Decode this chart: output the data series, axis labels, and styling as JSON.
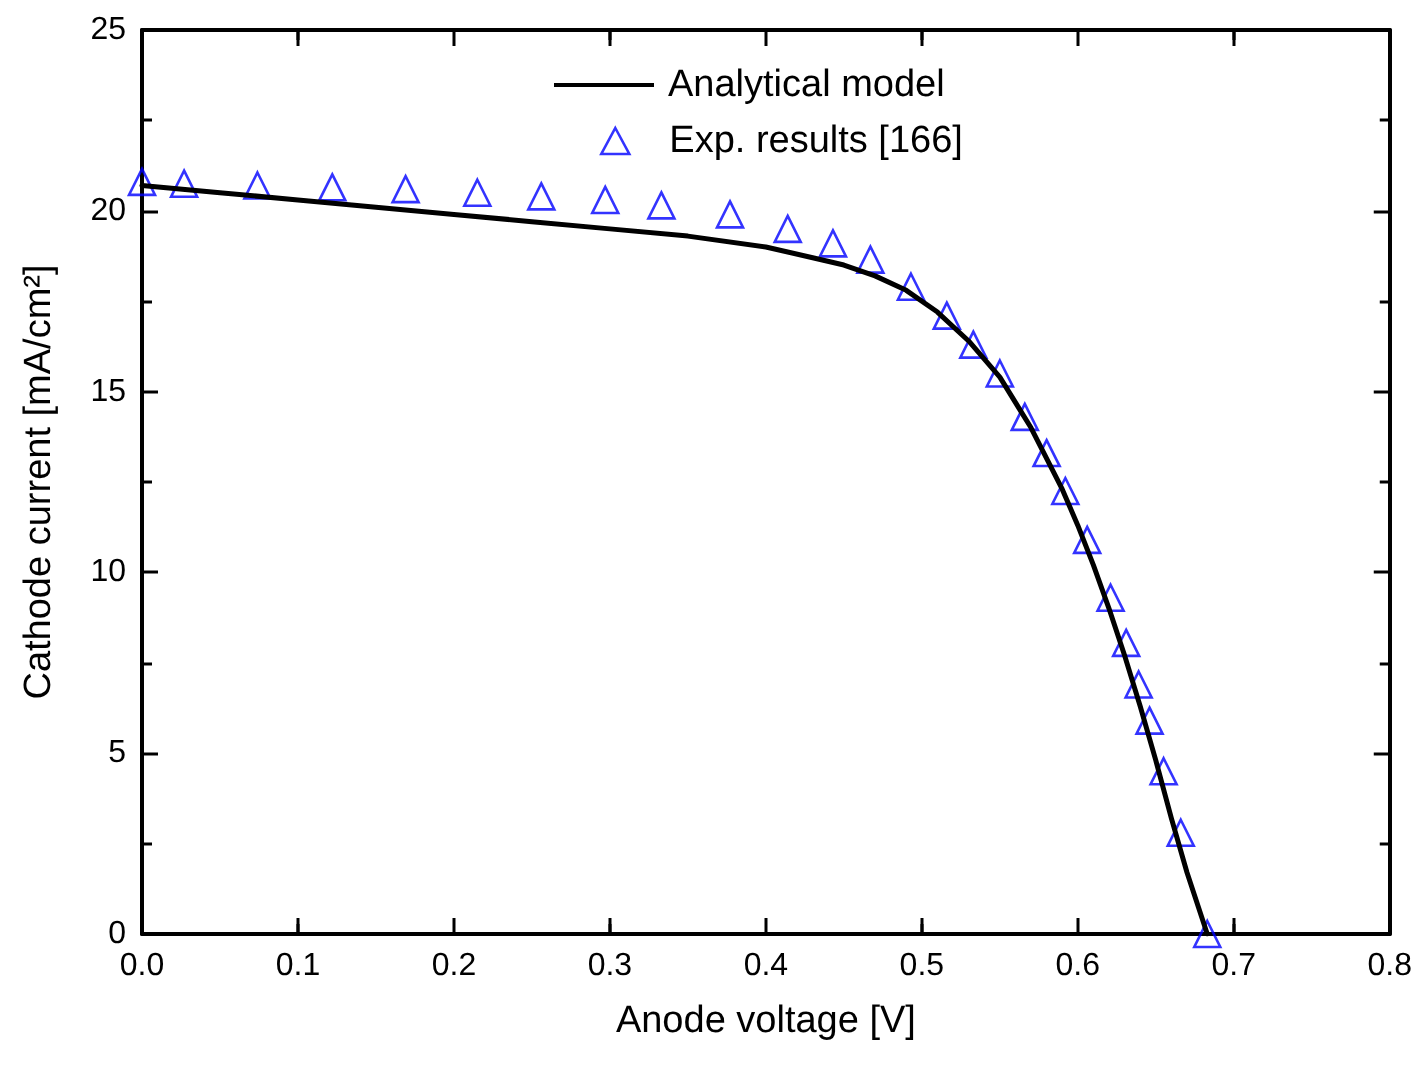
{
  "chart_data": {
    "type": "line",
    "xlabel": "Anode voltage [V]",
    "ylabel": "Cathode current [mA/cm²]",
    "xlim": [
      0,
      0.8
    ],
    "xticks": [
      {
        "value": 0,
        "label": "0.0"
      },
      0.1,
      0.2,
      0.3,
      0.4,
      0.5,
      0.6,
      0.7,
      0.8
    ],
    "ylim": [
      0,
      25
    ],
    "yticks": [
      0,
      5,
      10,
      15,
      20,
      25
    ],
    "grid": false,
    "legend": "top",
    "series": [
      {
        "name": "Analytical model",
        "color": "#000000",
        "marker": "none",
        "line_style": "solid",
        "x": [
          0,
          0.05,
          0.1,
          0.15,
          0.2,
          0.25,
          0.3,
          0.35,
          0.4,
          0.43,
          0.45,
          0.47,
          0.49,
          0.51,
          0.53,
          0.55,
          0.57,
          0.59,
          0.6,
          0.61,
          0.62,
          0.63,
          0.64,
          0.65,
          0.66,
          0.67,
          0.683
        ],
        "values": [
          20.7,
          20.5,
          20.3,
          20.1,
          19.9,
          19.7,
          19.5,
          19.3,
          19.0,
          18.7,
          18.5,
          18.2,
          17.8,
          17.2,
          16.4,
          15.4,
          14.0,
          12.3,
          11.3,
          10.2,
          9.0,
          7.7,
          6.3,
          4.8,
          3.2,
          1.7,
          0
        ]
      },
      {
        "name": "Exp. results [166]",
        "type": "scatter",
        "color": "#0000ff",
        "marker": "triangle",
        "x": [
          0,
          0.027,
          0.074,
          0.122,
          0.169,
          0.215,
          0.256,
          0.297,
          0.333,
          0.377,
          0.414,
          0.443,
          0.467,
          0.493,
          0.516,
          0.533,
          0.55,
          0.566,
          0.58,
          0.592,
          0.606,
          0.621,
          0.631,
          0.639,
          0.646,
          0.655,
          0.666,
          0.683
        ],
        "values": [
          20.8,
          20.75,
          20.7,
          20.65,
          20.6,
          20.5,
          20.4,
          20.3,
          20.15,
          19.9,
          19.5,
          19.1,
          18.65,
          17.9,
          17.1,
          16.3,
          15.5,
          14.3,
          13.3,
          12.25,
          10.9,
          9.3,
          8.05,
          6.9,
          5.9,
          4.5,
          2.8,
          0
        ]
      }
    ]
  }
}
